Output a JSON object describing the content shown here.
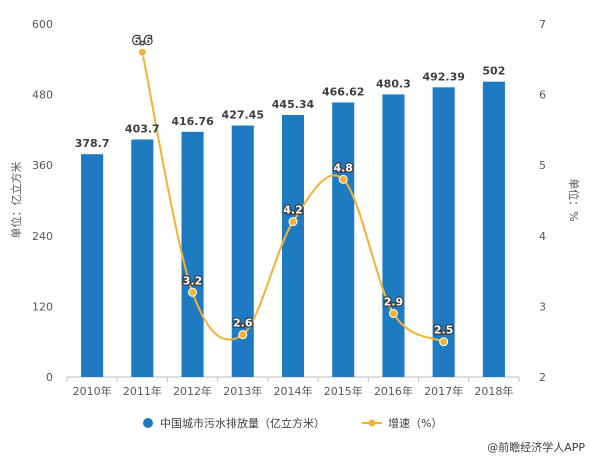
{
  "chart_data": {
    "type": "bar",
    "categories": [
      "2010年",
      "2011年",
      "2012年",
      "2013年",
      "2014年",
      "2015年",
      "2016年",
      "2017年",
      "2018年"
    ],
    "series": [
      {
        "name": "中国城市污水排放量（亿立方米）",
        "type": "bar",
        "axis": "left",
        "color": "#1f7bc1",
        "values": [
          378.7,
          403.7,
          416.76,
          427.45,
          445.34,
          466.62,
          480.3,
          492.39,
          502
        ],
        "labels": [
          "378.7",
          "403.7",
          "416.76",
          "427.45",
          "445.34",
          "466.62",
          "480.3",
          "492.39",
          "502"
        ]
      },
      {
        "name": "增速（%）",
        "type": "line",
        "axis": "right",
        "color": "#f2b233",
        "values": [
          null,
          6.6,
          3.2,
          2.6,
          4.2,
          4.8,
          2.9,
          2.5,
          null
        ],
        "labels": [
          "",
          "6.6",
          "3.2",
          "2.6",
          "4.2",
          "4.8",
          "2.9",
          "2.5",
          ""
        ]
      }
    ],
    "ylabel_left": "单位：亿立方米",
    "ylabel_right": "单位：%",
    "ylim_left": [
      0,
      600
    ],
    "yticks_left": [
      "0",
      "120",
      "240",
      "360",
      "480",
      "600"
    ],
    "ylim_right": [
      2,
      7
    ],
    "yticks_right": [
      "2",
      "3",
      "4",
      "5",
      "6",
      "7"
    ],
    "grid": false,
    "legend_position": "bottom"
  },
  "credit": "@前瞻经济学人APP"
}
